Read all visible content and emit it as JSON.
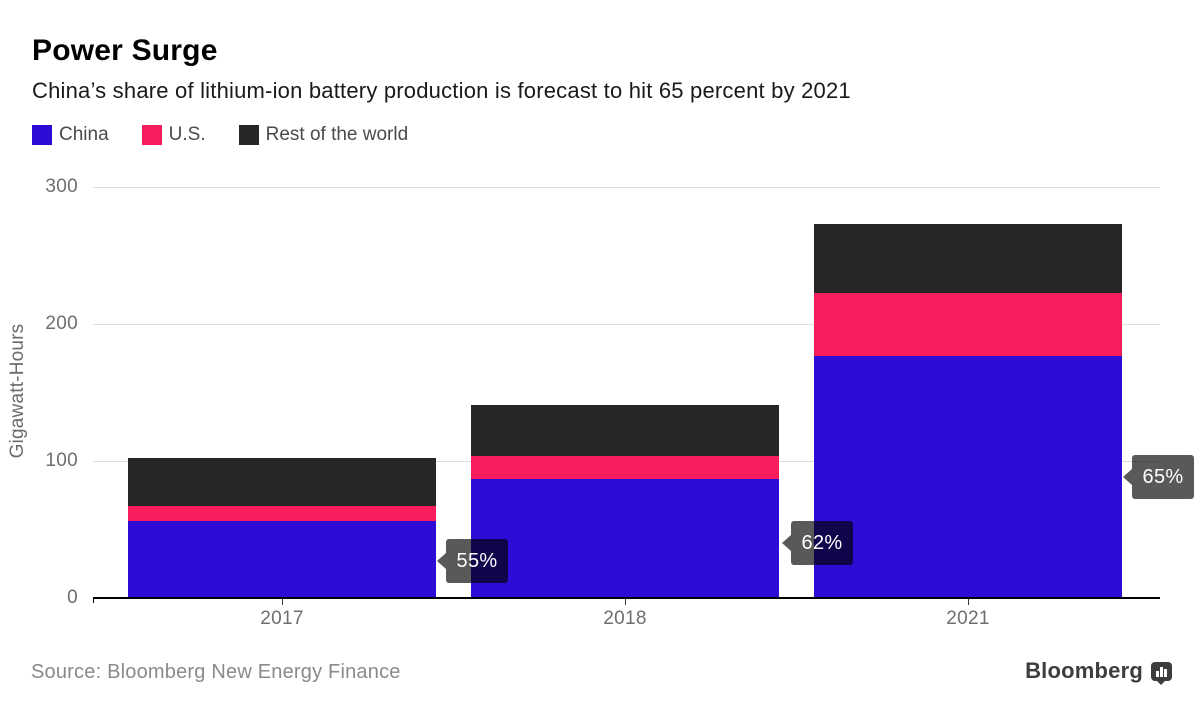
{
  "title": "Power Surge",
  "subtitle": "China’s share of lithium-ion battery production is forecast to hit 65 percent by 2021",
  "legend": [
    {
      "label": "China",
      "color": "#2E0CD6"
    },
    {
      "label": "U.S.",
      "color": "#F81E5E"
    },
    {
      "label": "Rest of the world",
      "color": "#262626"
    }
  ],
  "chart_data": {
    "type": "bar",
    "subtype": "stacked",
    "categories": [
      "2017",
      "2018",
      "2021"
    ],
    "series": [
      {
        "name": "China",
        "color": "#2E0CD6",
        "values": [
          56,
          87,
          177
        ]
      },
      {
        "name": "U.S.",
        "color": "#F81E5E",
        "values": [
          11,
          17,
          46
        ]
      },
      {
        "name": "Rest of the world",
        "color": "#262626",
        "values": [
          35,
          37,
          50
        ]
      }
    ],
    "totals": [
      102,
      141,
      273
    ],
    "title": "Power Surge",
    "xlabel": "",
    "ylabel": "Gigawatt-Hours",
    "yticks": [
      0,
      100,
      200,
      300
    ],
    "ylim": [
      0,
      300
    ],
    "grid": "horizontal",
    "legend_position": "top-left",
    "annotations": [
      {
        "text": "55%",
        "category": "2017",
        "meaning": "China share of 2017 production"
      },
      {
        "text": "62%",
        "category": "2018",
        "meaning": "China share of 2018 production"
      },
      {
        "text": "65%",
        "category": "2021",
        "meaning": "China share of 2021 production"
      }
    ]
  },
  "footer": {
    "source": "Source: Bloomberg New Energy Finance",
    "brand": "Bloomberg"
  },
  "colors": {
    "china": "#2E0CD6",
    "us": "#F81E5E",
    "rest_of_world": "#262626",
    "gridline": "#dcdcdc",
    "axis": "#000000",
    "tick_label": "#6e6e6e",
    "tooltip_bg": "rgba(0,0,0,0.65)"
  }
}
